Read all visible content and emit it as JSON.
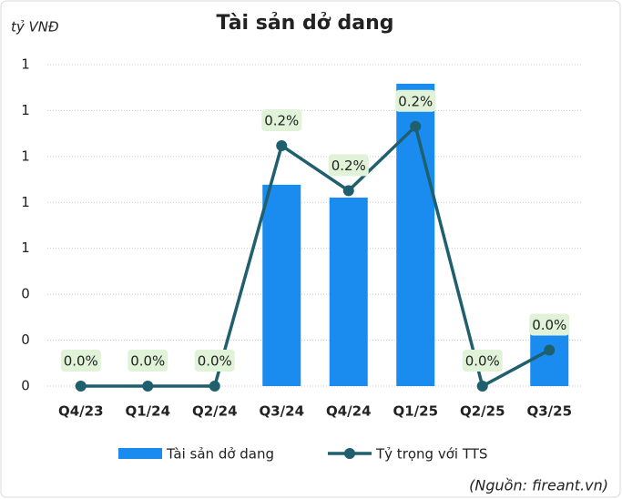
{
  "chart_data": {
    "type": "bar",
    "title": "Tài sản dở dang",
    "y_axis_label": "tỷ VNĐ",
    "source": "(Nguồn: fireant.vn)",
    "categories": [
      "Q4/23",
      "Q1/24",
      "Q2/24",
      "Q3/24",
      "Q4/24",
      "Q1/25",
      "Q2/25",
      "Q3/25"
    ],
    "series": [
      {
        "name": "Tài sản dở dang",
        "type": "bar",
        "color": "#1a8cf0",
        "values": [
          0,
          0,
          0,
          0.877,
          0.821,
          1.317,
          0,
          0.234
        ]
      },
      {
        "name": "Tỷ trọng với TTS",
        "type": "line",
        "axis": "y2",
        "color": "#1f5f6e",
        "values": [
          0,
          0,
          0,
          0.187,
          0.152,
          0.202,
          0,
          0.028
        ],
        "value_labels": [
          "0.0%",
          "0.0%",
          "0.0%",
          "0.2%",
          "0.2%",
          "0.2%",
          "0.0%",
          "0.0%"
        ]
      }
    ],
    "ylim": [
      0,
      1.4
    ],
    "yticks": [
      {
        "value": 0,
        "label": "0"
      },
      {
        "value": 0.2,
        "label": "0"
      },
      {
        "value": 0.4,
        "label": "0"
      },
      {
        "value": 0.6,
        "label": "1"
      },
      {
        "value": 0.8,
        "label": "1"
      },
      {
        "value": 1.0,
        "label": "1"
      },
      {
        "value": 1.2,
        "label": "1"
      },
      {
        "value": 1.4,
        "label": "1"
      }
    ],
    "y2lim": [
      0,
      0.25
    ],
    "grid": true,
    "legend": "bottom"
  }
}
